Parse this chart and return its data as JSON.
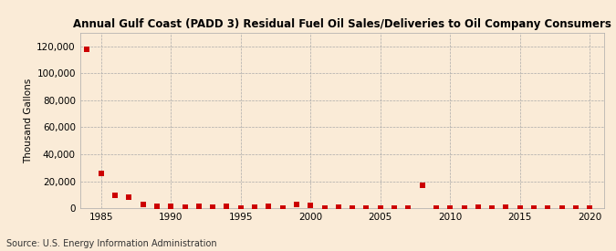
{
  "title": "Annual Gulf Coast (PADD 3) Residual Fuel Oil Sales/Deliveries to Oil Company Consumers",
  "ylabel": "Thousand Gallons",
  "source": "Source: U.S. Energy Information Administration",
  "background_color": "#faebd7",
  "plot_background_color": "#faebd7",
  "marker_color": "#cc0000",
  "marker_size": 16,
  "xlim": [
    1983.5,
    2021
  ],
  "ylim": [
    0,
    130000
  ],
  "yticks": [
    0,
    20000,
    40000,
    60000,
    80000,
    100000,
    120000
  ],
  "xticks": [
    1985,
    1990,
    1995,
    2000,
    2005,
    2010,
    2015,
    2020
  ],
  "years": [
    1984,
    1985,
    1986,
    1987,
    1988,
    1989,
    1990,
    1991,
    1992,
    1993,
    1994,
    1995,
    1996,
    1997,
    1998,
    1999,
    2000,
    2001,
    2002,
    2003,
    2004,
    2005,
    2006,
    2007,
    2008,
    2009,
    2010,
    2011,
    2012,
    2013,
    2014,
    2015,
    2016,
    2017,
    2018,
    2019,
    2020
  ],
  "values": [
    118000,
    26000,
    9500,
    8000,
    3200,
    1200,
    1500,
    800,
    1500,
    900,
    1800,
    500,
    600,
    1800,
    500,
    2800,
    2200,
    500,
    600,
    500,
    500,
    500,
    400,
    500,
    17000,
    400,
    500,
    400,
    1000,
    400,
    1000,
    400,
    400,
    400,
    400,
    400,
    400
  ]
}
